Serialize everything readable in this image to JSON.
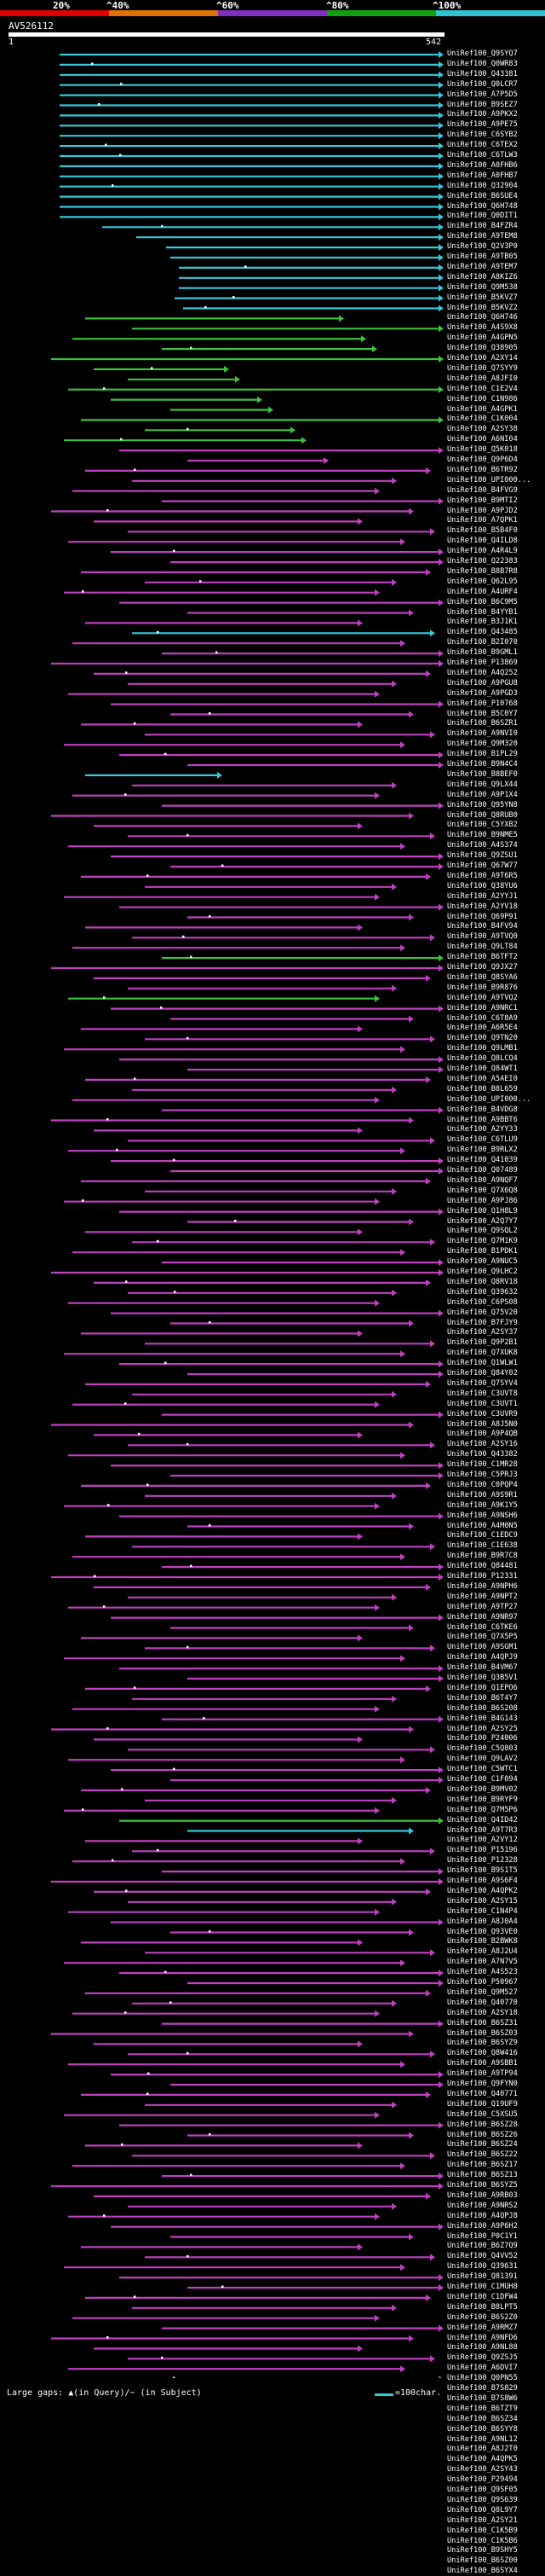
{
  "scale": {
    "labels": [
      "20%",
      "^40%",
      "^60%",
      "^80%",
      "^100%"
    ],
    "colors": [
      "#e00000",
      "#e07000",
      "#8030c0",
      "#10a010",
      "#30c0d0"
    ]
  },
  "query": {
    "name": "AV526112",
    "start": "1",
    "end": "542"
  },
  "legend": {
    "text": "Large gaps: ▲(in Query)/~ (in Subject)",
    "scale_text": "=100char."
  },
  "colors": {
    "cyan": "#36c8d8",
    "green": "#3cc23c",
    "magenta": "#c040c0"
  },
  "hit_names": [
    "UniRef100_Q9SYQ7",
    "UniRef100_Q0WR83",
    "UniRef100_Q43381",
    "UniRef100_Q0LCR7",
    "UniRef100_A7P5D5",
    "UniRef100_B9SEZ7",
    "UniRef100_A9PKX2",
    "UniRef100_A9PE75",
    "UniRef100_C6SYB2",
    "UniRef100_C6TEX2",
    "UniRef100_C6TLW3",
    "UniRef100_A0FHB6",
    "UniRef100_A0FHB7",
    "UniRef100_Q32904",
    "UniRef100_B6SUE4",
    "UniRef100_Q6H748",
    "UniRef100_Q0DIT1",
    "UniRef100_B4FZR4",
    "UniRef100_A9TEM8",
    "UniRef100_Q2V3P0",
    "UniRef100_A9TB05",
    "UniRef100_A9TEM7",
    "UniRef100_A8KIZ6",
    "UniRef100_Q9M538",
    "UniRef100_B5KVZ7",
    "UniRef100_B5KVZ2",
    "UniRef100_Q6H746",
    "UniRef100_A4S9X8",
    "UniRef100_A4GPN5",
    "UniRef100_Q38905",
    "UniRef100_A2XY14",
    "UniRef100_Q7SYY9",
    "UniRef100_A8JFI0",
    "UniRef100_C1E2V4",
    "UniRef100_C1N986",
    "UniRef100_A4GPK1",
    "UniRef100_C1K004",
    "UniRef100_A2SY38",
    "UniRef100_A6NI04",
    "UniRef100_Q5K018",
    "UniRef100_Q9P6D4",
    "UniRef100_B6TR92",
    "UniRef100_UPI000...",
    "UniRef100_B4FVG9",
    "UniRef100_B9MTI2",
    "UniRef100_A9PJD2",
    "UniRef100_A7QPK1",
    "UniRef100_B5B4F0",
    "UniRef100_Q4ILD8",
    "UniRef100_A4R4L9",
    "UniRef100_Q22383",
    "UniRef100_B8B7R8",
    "UniRef100_Q62L95",
    "UniRef100_A4URF4",
    "UniRef100_B6C9M5",
    "UniRef100_B4YYB1",
    "UniRef100_B3J1K1",
    "UniRef100_Q43485",
    "UniRef100_B2I070",
    "UniRef100_B9GML1",
    "UniRef100_P13869",
    "UniRef100_A4Q252",
    "UniRef100_A9PGU8",
    "UniRef100_A9PGD3",
    "UniRef100_P10768",
    "UniRef100_B5C0Y7",
    "UniRef100_B6SZR1",
    "UniRef100_A9NVI0",
    "UniRef100_Q9M320",
    "UniRef100_B1PL29",
    "UniRef100_B9N4C4",
    "UniRef100_B8BEF0",
    "UniRef100_Q9LX44",
    "UniRef100_A9P1X4",
    "UniRef100_Q95YN8",
    "UniRef100_Q8RUB0",
    "UniRef100_C5YXB2",
    "UniRef100_B9NME5",
    "UniRef100_A4S374",
    "UniRef100_Q9ZSU1",
    "UniRef100_Q67W77",
    "UniRef100_A9T6R5",
    "UniRef100_Q38YU6",
    "UniRef100_A2YYJ1",
    "UniRef100_A2YV18",
    "UniRef100_Q69P91",
    "UniRef100_B4FV94",
    "UniRef100_A9TVQ0",
    "UniRef100_Q9LT84",
    "UniRef100_B6TFT2",
    "UniRef100_Q9JX27",
    "UniRef100_Q8SYA6",
    "UniRef100_B9R876",
    "UniRef100_A9TVQ2",
    "UniRef100_A9NRC1",
    "UniRef100_C6T8A9",
    "UniRef100_A6R5E4",
    "UniRef100_Q9TN20",
    "UniRef100_Q9LMB1",
    "UniRef100_Q8LCQ4",
    "UniRef100_Q84WT1",
    "UniRef100_A5AEI0",
    "UniRef100_B8L659",
    "UniRef100_UPI000...",
    "UniRef100_B4VDG8",
    "UniRef100_A9BBT6",
    "UniRef100_A2YY33",
    "UniRef100_C6TLU9",
    "UniRef100_B9RLX2",
    "UniRef100_Q41039",
    "UniRef100_Q07489",
    "UniRef100_A9NQF7",
    "UniRef100_Q7X6Q8",
    "UniRef100_A9PJ86",
    "UniRef100_Q1H8L9",
    "UniRef100_A2Q7Y7",
    "UniRef100_Q9SQL2",
    "UniRef100_Q7M1K9",
    "UniRef100_B1PDK1",
    "UniRef100_A9NUC5",
    "UniRef100_Q9LHC2",
    "UniRef100_Q8RV18",
    "UniRef100_Q39632",
    "UniRef100_C6PS08",
    "UniRef100_Q75V20",
    "UniRef100_B7FJY9",
    "UniRef100_A2SY37",
    "UniRef100_Q9P2B1",
    "UniRef100_Q7XUK8",
    "UniRef100_Q1WLW1",
    "UniRef100_Q84Y02",
    "UniRef100_Q7SYV4",
    "UniRef100_C3UVT8",
    "UniRef100_C3UVT1",
    "UniRef100_C3UVR9",
    "UniRef100_A8J5N0",
    "UniRef100_A9P4QB",
    "UniRef100_A2SY16",
    "UniRef100_Q43382",
    "UniRef100_C1MR28",
    "UniRef100_C5PRJ3",
    "UniRef100_C0PQP4",
    "UniRef100_A9S9R1",
    "UniRef100_A9K1Y5",
    "UniRef100_A9NSH6",
    "UniRef100_A4M0N5",
    "UniRef100_C1EDC9",
    "UniRef100_C1E638",
    "UniRef100_B9R7C8",
    "UniRef100_Q84481",
    "UniRef100_P12331",
    "UniRef100_A9NPH6",
    "UniRef100_A9NPT2",
    "UniRef100_A9TP27",
    "UniRef100_A9NR97",
    "UniRef100_C6TKE6",
    "UniRef100_Q7X5P5",
    "UniRef100_A9SGM1",
    "UniRef100_A4QPJ9",
    "UniRef100_B4VM67",
    "UniRef100_Q3B5V1",
    "UniRef100_Q1EPO6",
    "UniRef100_B6T4Y7",
    "UniRef100_B6S208",
    "UniRef100_B4G143",
    "UniRef100_A2SY25",
    "UniRef100_P24006",
    "UniRef100_C5Q803",
    "UniRef100_Q9LAV2",
    "UniRef100_C5WTC1",
    "UniRef100_C1F094",
    "UniRef100_B9MV02",
    "UniRef100_B9RYF9",
    "UniRef100_Q7M5P6",
    "UniRef100_Q4ID42",
    "UniRef100_A9T7R3",
    "UniRef100_A2VY12",
    "UniRef100_P15196",
    "UniRef100_P12328",
    "UniRef100_B9S1T5",
    "UniRef100_A9S6F4",
    "UniRef100_A4QPK2",
    "UniRef100_A2SY15",
    "UniRef100_C1N4P4",
    "UniRef100_A8J0A4",
    "UniRef100_Q93VE0",
    "UniRef100_B2BWK8",
    "UniRef100_A8J2U4",
    "UniRef100_A7N7V5",
    "UniRef100_A4S523",
    "UniRef100_P50967",
    "UniRef100_Q9M527",
    "UniRef100_Q40770",
    "UniRef100_A2SY18",
    "UniRef100_B6SZ31",
    "UniRef100_B6SZ03",
    "UniRef100_B6SYZ9",
    "UniRef100_Q8W416",
    "UniRef100_A9SBB1",
    "UniRef100_A9TP94",
    "UniRef100_Q9FYN0",
    "UniRef100_Q40771",
    "UniRef100_Q19UF9",
    "UniRef100_C5XSU5",
    "UniRef100_B6SZ28",
    "UniRef100_B6SZ26",
    "UniRef100_B6SZ24",
    "UniRef100_B6SZ22",
    "UniRef100_B6SZ17",
    "UniRef100_B6SZ13",
    "UniRef100_B6SYZ5",
    "UniRef100_A9RB03",
    "UniRef100_A9NRS2",
    "UniRef100_A4QPJ8",
    "UniRef100_A9P6H2",
    "UniRef100_P0C1Y1",
    "UniRef100_B6Z7Q9",
    "UniRef100_Q4VV52",
    "UniRef100_Q39631",
    "UniRef100_Q81391",
    "UniRef100_C1MUH8",
    "UniRef100_C1DFW4",
    "UniRef100_B8LPT5",
    "UniRef100_B6S2Z0",
    "UniRef100_A9RMZ7",
    "UniRef100_A9NFD6",
    "UniRef100_A9NL88",
    "UniRef100_Q9ZSJ5",
    "UniRef100_A6DVI7",
    "UniRef100_Q0PN55",
    "UniRef100_B7S829",
    "UniRef100_B7S8W6",
    "UniRef100_B6TZT9",
    "UniRef100_B6SZ34",
    "UniRef100_B6SYY8",
    "UniRef100_A9NL12",
    "UniRef100_A8J2T0",
    "UniRef100_A4QPK5",
    "UniRef100_A2SY43",
    "UniRef100_P29494",
    "UniRef100_Q9SF05",
    "UniRef100_Q9S639",
    "UniRef100_Q8L9Y7",
    "UniRef100_A2SY21",
    "UniRef100_C1K5B9",
    "UniRef100_C1K5B6",
    "UniRef100_B9SHY5",
    "UniRef100_B6SZ00",
    "UniRef100_B6SYX4"
  ]
}
